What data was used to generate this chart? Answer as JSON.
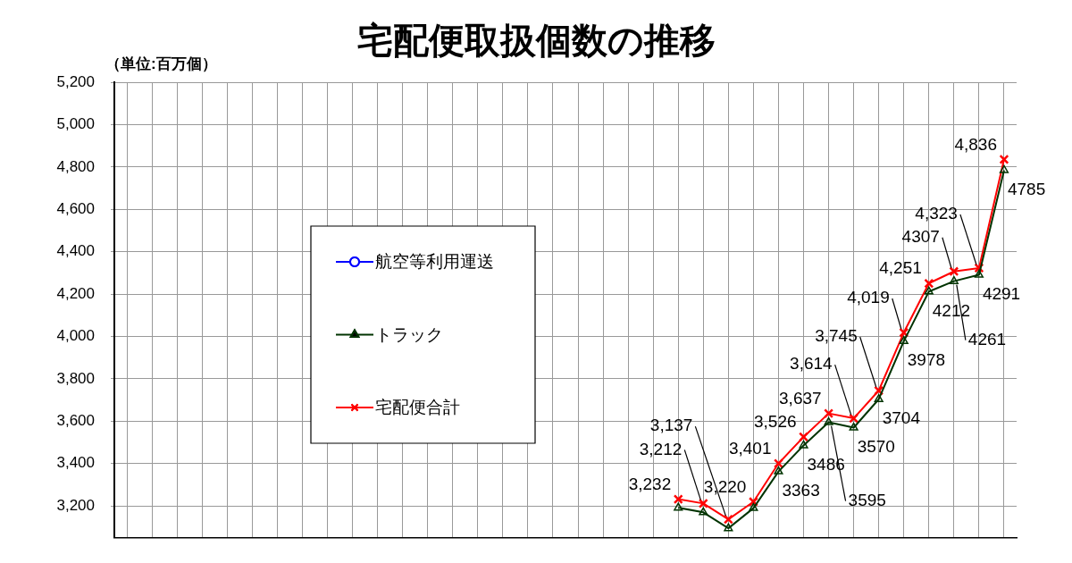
{
  "chart_data": {
    "type": "line",
    "title": "宅配便取扱個数の推移",
    "ylabel": "（単位:百万個）",
    "categories": [
      null,
      null,
      null,
      null,
      null,
      null,
      null,
      null,
      null,
      null,
      null,
      null,
      null,
      null,
      null,
      null,
      null,
      null,
      null,
      null,
      null,
      null,
      null,
      null,
      null,
      null,
      null,
      null,
      null,
      null,
      null,
      null,
      null,
      null,
      null,
      null
    ],
    "ylim": [
      3050,
      5200
    ],
    "yticks": [
      {
        "value": 3200,
        "label": "3,200"
      },
      {
        "value": 3400,
        "label": "3,400"
      },
      {
        "value": 3600,
        "label": "3,600"
      },
      {
        "value": 3800,
        "label": "3,800"
      },
      {
        "value": 4000,
        "label": "4,000"
      },
      {
        "value": 4200,
        "label": "4,200"
      },
      {
        "value": 4400,
        "label": "4,400"
      },
      {
        "value": 4600,
        "label": "4,600"
      },
      {
        "value": 4800,
        "label": "4,800"
      },
      {
        "value": 5000,
        "label": "5,000"
      },
      {
        "value": 5200,
        "label": "5,200"
      }
    ],
    "grid": true,
    "legend": "left",
    "tick_labels": "y",
    "line_style": "solid",
    "series": [
      {
        "name": "航空等利用運送",
        "color": "#0000ff",
        "marker": "circle",
        "values": [
          null,
          null,
          null,
          null,
          null,
          null,
          null,
          null,
          null,
          null,
          null,
          null,
          null,
          null,
          null,
          null,
          null,
          null,
          null,
          null,
          null,
          null,
          null,
          null,
          null,
          null,
          null,
          null,
          null,
          null,
          null,
          null,
          null,
          null,
          null,
          null
        ]
      },
      {
        "name": "トラック",
        "color": "#003300",
        "marker": "triangle",
        "values": [
          null,
          null,
          null,
          null,
          null,
          null,
          null,
          null,
          null,
          null,
          null,
          null,
          null,
          null,
          null,
          null,
          null,
          null,
          null,
          null,
          null,
          null,
          3192,
          3170,
          3095,
          3190,
          3363,
          3486,
          3595,
          3570,
          3704,
          3978,
          4212,
          4261,
          4291,
          4785
        ],
        "value_labels": [
          null,
          null,
          null,
          null,
          null,
          null,
          null,
          null,
          null,
          null,
          null,
          null,
          null,
          null,
          null,
          null,
          null,
          null,
          null,
          null,
          null,
          null,
          null,
          null,
          null,
          null,
          "3363",
          "3486",
          "3595",
          "3570",
          "3704",
          "3978",
          "4212",
          "4261",
          "4291",
          "4785"
        ]
      },
      {
        "name": "宅配便合計",
        "color": "#ff0000",
        "marker": "cross",
        "values": [
          null,
          null,
          null,
          null,
          null,
          null,
          null,
          null,
          null,
          null,
          null,
          null,
          null,
          null,
          null,
          null,
          null,
          null,
          null,
          null,
          null,
          null,
          3232,
          3212,
          3137,
          3220,
          3401,
          3526,
          3637,
          3614,
          3745,
          4019,
          4251,
          4307,
          4323,
          4836
        ],
        "value_labels": [
          null,
          null,
          null,
          null,
          null,
          null,
          null,
          null,
          null,
          null,
          null,
          null,
          null,
          null,
          null,
          null,
          null,
          null,
          null,
          null,
          null,
          null,
          "3,232",
          "3,212",
          "3,137",
          "3,220",
          "3,401",
          "3,526",
          "3,637",
          "3,614",
          "3,745",
          "4,019",
          "4,251",
          "4307",
          "4,323",
          "4,836"
        ]
      }
    ]
  }
}
